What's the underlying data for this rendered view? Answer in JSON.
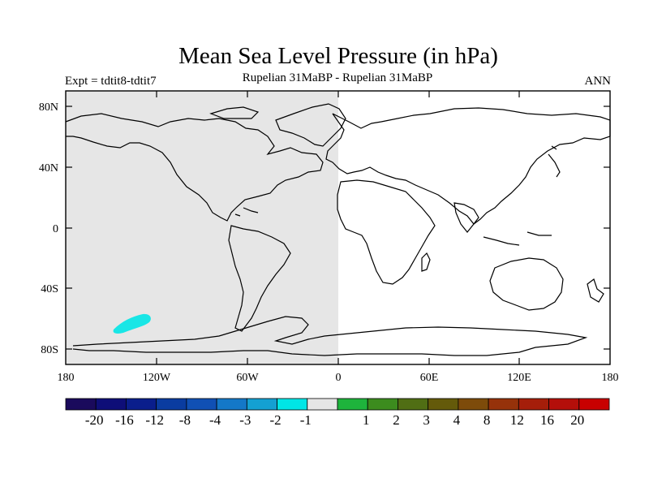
{
  "title": "Mean Sea Level Pressure (in hPa)",
  "subtitle_left": "Expt = tdtit8-tdtit7",
  "subtitle_center": "Rupelian  31MaBP - Rupelian  31MaBP",
  "subtitle_right": "ANN",
  "lat_ticks": [
    "80N",
    "40N",
    "0",
    "40S",
    "80S"
  ],
  "lon_ticks": [
    "180",
    "120W",
    "60W",
    "0",
    "60E",
    "120E",
    "180"
  ],
  "colorbar": {
    "colors": [
      "#1a0a5c",
      "#0e0e78",
      "#0a1e8c",
      "#0a3ca0",
      "#1050b4",
      "#1478c8",
      "#14a0d2",
      "#00e6e6",
      "#e6e6e6",
      "#1eb43c",
      "#3c8c1e",
      "#506e14",
      "#645a0a",
      "#7d4b0a",
      "#96320a",
      "#a51e0a",
      "#b40f0a",
      "#c80000"
    ],
    "labels": [
      "-20",
      "-16",
      "-12",
      "-8",
      "-4",
      "-3",
      "-2",
      "-1",
      "1",
      "2",
      "3",
      "4",
      "8",
      "12",
      "16",
      "20"
    ]
  },
  "colors": {
    "shade_west": "#e6e6e6",
    "anomaly_patch": "#19e6e6",
    "coast": "#000000"
  }
}
